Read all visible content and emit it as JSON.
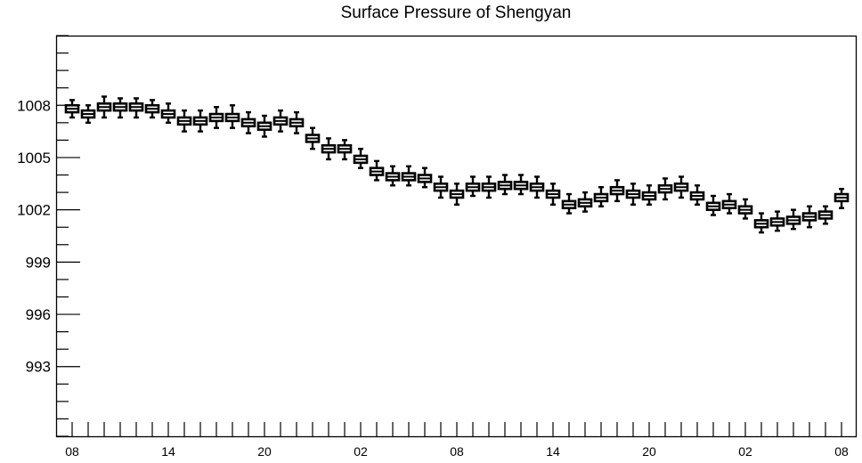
{
  "chart_data": {
    "type": "boxplot",
    "title": "Surface Pressure of Shengyan",
    "xlabel": "",
    "ylabel": "",
    "ylim": [
      989.0,
      1012.0
    ],
    "y_ticks": [
      993,
      996,
      999,
      1002,
      1005,
      1008
    ],
    "x_tick_labels": [
      "08",
      "14",
      "20",
      "02",
      "08",
      "14",
      "20",
      "02",
      "08"
    ],
    "x_tick_steps": [
      0,
      6,
      12,
      18,
      24,
      30,
      36,
      42,
      48
    ],
    "grid": false,
    "legend": "none",
    "color": "#000000",
    "series": [
      {
        "step": 0,
        "median": 1007.8,
        "q1": 1007.6,
        "q3": 1008.0,
        "min": 1007.3,
        "max": 1008.3
      },
      {
        "step": 1,
        "median": 1007.5,
        "q1": 1007.3,
        "q3": 1007.7,
        "min": 1007.0,
        "max": 1008.0
      },
      {
        "step": 2,
        "median": 1007.9,
        "q1": 1007.7,
        "q3": 1008.1,
        "min": 1007.3,
        "max": 1008.5
      },
      {
        "step": 3,
        "median": 1007.9,
        "q1": 1007.7,
        "q3": 1008.1,
        "min": 1007.3,
        "max": 1008.4
      },
      {
        "step": 4,
        "median": 1007.9,
        "q1": 1007.7,
        "q3": 1008.1,
        "min": 1007.3,
        "max": 1008.4
      },
      {
        "step": 5,
        "median": 1007.8,
        "q1": 1007.6,
        "q3": 1008.0,
        "min": 1007.3,
        "max": 1008.3
      },
      {
        "step": 6,
        "median": 1007.5,
        "q1": 1007.3,
        "q3": 1007.7,
        "min": 1007.0,
        "max": 1008.1
      },
      {
        "step": 7,
        "median": 1007.1,
        "q1": 1006.9,
        "q3": 1007.3,
        "min": 1006.5,
        "max": 1007.7
      },
      {
        "step": 8,
        "median": 1007.1,
        "q1": 1006.9,
        "q3": 1007.3,
        "min": 1006.5,
        "max": 1007.7
      },
      {
        "step": 9,
        "median": 1007.3,
        "q1": 1007.1,
        "q3": 1007.5,
        "min": 1006.7,
        "max": 1007.9
      },
      {
        "step": 10,
        "median": 1007.3,
        "q1": 1007.1,
        "q3": 1007.5,
        "min": 1006.7,
        "max": 1008.0
      },
      {
        "step": 11,
        "median": 1007.0,
        "q1": 1006.8,
        "q3": 1007.2,
        "min": 1006.4,
        "max": 1007.6
      },
      {
        "step": 12,
        "median": 1006.8,
        "q1": 1006.6,
        "q3": 1007.0,
        "min": 1006.2,
        "max": 1007.4
      },
      {
        "step": 13,
        "median": 1007.1,
        "q1": 1006.9,
        "q3": 1007.3,
        "min": 1006.5,
        "max": 1007.7
      },
      {
        "step": 14,
        "median": 1007.0,
        "q1": 1006.8,
        "q3": 1007.2,
        "min": 1006.4,
        "max": 1007.6
      },
      {
        "step": 15,
        "median": 1006.1,
        "q1": 1005.9,
        "q3": 1006.3,
        "min": 1005.5,
        "max": 1006.7
      },
      {
        "step": 16,
        "median": 1005.5,
        "q1": 1005.3,
        "q3": 1005.7,
        "min": 1004.9,
        "max": 1006.1
      },
      {
        "step": 17,
        "median": 1005.5,
        "q1": 1005.3,
        "q3": 1005.7,
        "min": 1004.9,
        "max": 1006.0
      },
      {
        "step": 18,
        "median": 1004.9,
        "q1": 1004.7,
        "q3": 1005.1,
        "min": 1004.4,
        "max": 1005.5
      },
      {
        "step": 19,
        "median": 1004.2,
        "q1": 1004.0,
        "q3": 1004.4,
        "min": 1003.7,
        "max": 1004.8
      },
      {
        "step": 20,
        "median": 1003.9,
        "q1": 1003.7,
        "q3": 1004.1,
        "min": 1003.4,
        "max": 1004.5
      },
      {
        "step": 21,
        "median": 1003.9,
        "q1": 1003.7,
        "q3": 1004.1,
        "min": 1003.4,
        "max": 1004.5
      },
      {
        "step": 22,
        "median": 1003.8,
        "q1": 1003.6,
        "q3": 1004.0,
        "min": 1003.3,
        "max": 1004.4
      },
      {
        "step": 23,
        "median": 1003.3,
        "q1": 1003.1,
        "q3": 1003.5,
        "min": 1002.7,
        "max": 1003.9
      },
      {
        "step": 24,
        "median": 1002.9,
        "q1": 1002.7,
        "q3": 1003.1,
        "min": 1002.3,
        "max": 1003.5
      },
      {
        "step": 25,
        "median": 1003.3,
        "q1": 1003.1,
        "q3": 1003.5,
        "min": 1002.8,
        "max": 1003.9
      },
      {
        "step": 26,
        "median": 1003.3,
        "q1": 1003.1,
        "q3": 1003.5,
        "min": 1002.7,
        "max": 1003.9
      },
      {
        "step": 27,
        "median": 1003.4,
        "q1": 1003.2,
        "q3": 1003.6,
        "min": 1002.9,
        "max": 1004.0
      },
      {
        "step": 28,
        "median": 1003.4,
        "q1": 1003.2,
        "q3": 1003.6,
        "min": 1002.9,
        "max": 1004.0
      },
      {
        "step": 29,
        "median": 1003.3,
        "q1": 1003.1,
        "q3": 1003.5,
        "min": 1002.7,
        "max": 1003.9
      },
      {
        "step": 30,
        "median": 1002.9,
        "q1": 1002.7,
        "q3": 1003.1,
        "min": 1002.3,
        "max": 1003.5
      },
      {
        "step": 31,
        "median": 1002.3,
        "q1": 1002.1,
        "q3": 1002.5,
        "min": 1001.8,
        "max": 1002.9
      },
      {
        "step": 32,
        "median": 1002.4,
        "q1": 1002.2,
        "q3": 1002.6,
        "min": 1001.9,
        "max": 1003.0
      },
      {
        "step": 33,
        "median": 1002.7,
        "q1": 1002.5,
        "q3": 1002.9,
        "min": 1002.2,
        "max": 1003.3
      },
      {
        "step": 34,
        "median": 1003.1,
        "q1": 1002.9,
        "q3": 1003.3,
        "min": 1002.5,
        "max": 1003.7
      },
      {
        "step": 35,
        "median": 1002.9,
        "q1": 1002.7,
        "q3": 1003.1,
        "min": 1002.3,
        "max": 1003.5
      },
      {
        "step": 36,
        "median": 1002.8,
        "q1": 1002.6,
        "q3": 1003.0,
        "min": 1002.3,
        "max": 1003.4
      },
      {
        "step": 37,
        "median": 1003.2,
        "q1": 1003.0,
        "q3": 1003.4,
        "min": 1002.6,
        "max": 1003.8
      },
      {
        "step": 38,
        "median": 1003.3,
        "q1": 1003.1,
        "q3": 1003.5,
        "min": 1002.7,
        "max": 1003.9
      },
      {
        "step": 39,
        "median": 1002.8,
        "q1": 1002.6,
        "q3": 1003.0,
        "min": 1002.3,
        "max": 1003.4
      },
      {
        "step": 40,
        "median": 1002.2,
        "q1": 1002.0,
        "q3": 1002.4,
        "min": 1001.7,
        "max": 1002.8
      },
      {
        "step": 41,
        "median": 1002.3,
        "q1": 1002.1,
        "q3": 1002.5,
        "min": 1001.8,
        "max": 1002.9
      },
      {
        "step": 42,
        "median": 1002.0,
        "q1": 1001.8,
        "q3": 1002.2,
        "min": 1001.5,
        "max": 1002.6
      },
      {
        "step": 43,
        "median": 1001.2,
        "q1": 1001.0,
        "q3": 1001.4,
        "min": 1000.7,
        "max": 1001.8
      },
      {
        "step": 44,
        "median": 1001.3,
        "q1": 1001.1,
        "q3": 1001.5,
        "min": 1000.8,
        "max": 1001.9
      },
      {
        "step": 45,
        "median": 1001.4,
        "q1": 1001.2,
        "q3": 1001.6,
        "min": 1000.9,
        "max": 1002.0
      },
      {
        "step": 46,
        "median": 1001.6,
        "q1": 1001.4,
        "q3": 1001.8,
        "min": 1001.0,
        "max": 1002.2
      },
      {
        "step": 47,
        "median": 1001.7,
        "q1": 1001.5,
        "q3": 1001.9,
        "min": 1001.2,
        "max": 1002.2
      },
      {
        "step": 48,
        "median": 1002.7,
        "q1": 1002.5,
        "q3": 1002.9,
        "min": 1002.1,
        "max": 1003.2
      }
    ]
  }
}
